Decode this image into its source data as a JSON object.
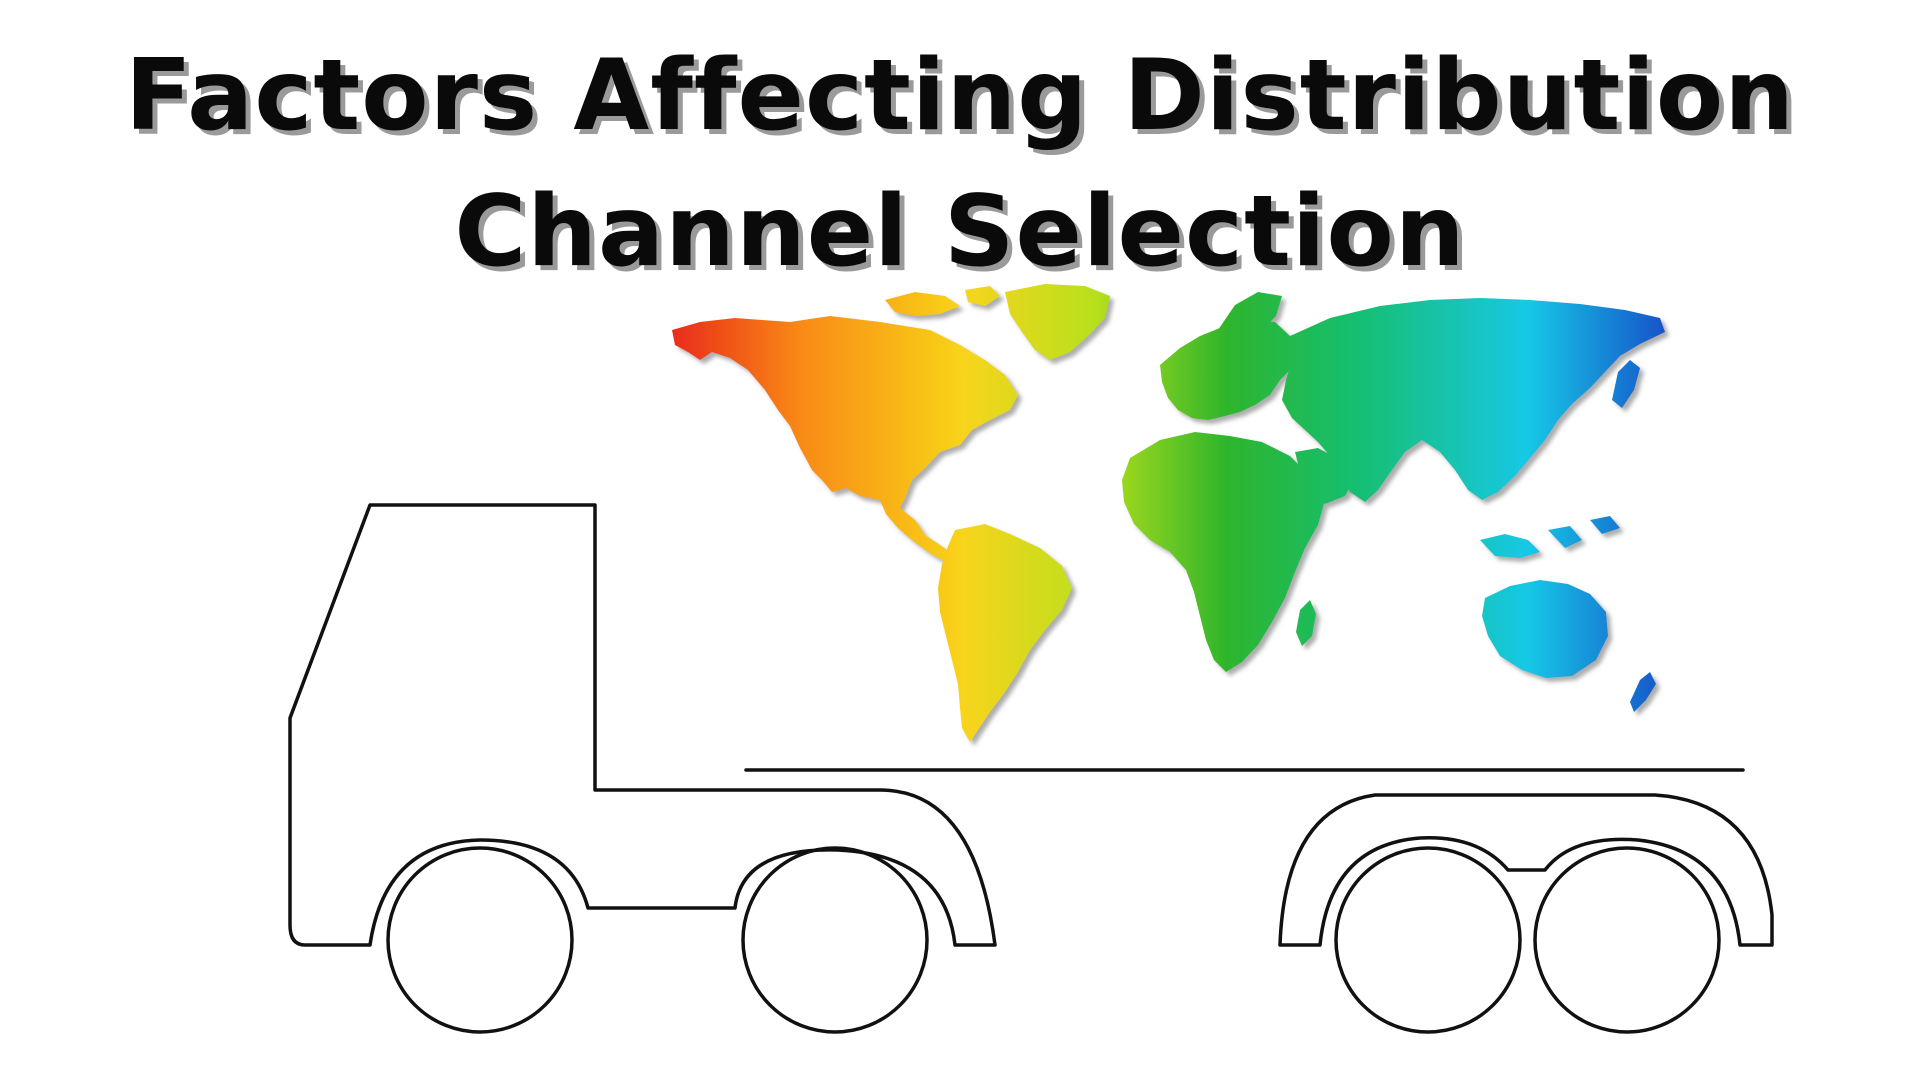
{
  "title": {
    "line1": "Factors Affecting Distribution",
    "line2": "Channel Selection"
  },
  "illustration": {
    "truck": "truck-outline",
    "cargo": "world-map",
    "gradient_colors": [
      "#e8231d",
      "#f98a12",
      "#f8d41a",
      "#b8e01a",
      "#2fb52c",
      "#13bf77",
      "#12c8e6",
      "#1a4fc8"
    ]
  }
}
